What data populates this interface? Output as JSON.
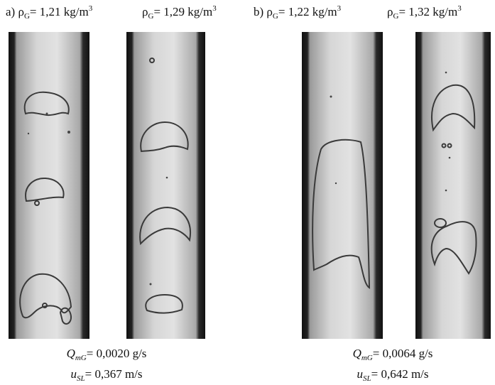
{
  "panels": [
    {
      "letter": "a)",
      "columns": [
        {
          "symbol": "ρ",
          "sub": "G",
          "value": "= 1,21 kg/m",
          "sup": "3"
        },
        {
          "symbol": "ρ",
          "sub": "G",
          "value": "= 1,29 kg/m",
          "sup": "3"
        }
      ],
      "flow": {
        "symbol": "Q",
        "sub": "mG",
        "value": "= 0,0020 g/s"
      },
      "velocity": {
        "symbol": "u",
        "sub": "SL",
        "value": "= 0,367 m/s"
      }
    },
    {
      "letter": "b)",
      "columns": [
        {
          "symbol": "ρ",
          "sub": "G",
          "value": "= 1,22 kg/m",
          "sup": "3"
        },
        {
          "symbol": "ρ",
          "sub": "G",
          "value": "= 1,32 kg/m",
          "sup": "3"
        }
      ],
      "flow": {
        "symbol": "Q",
        "sub": "mG",
        "value": "= 0,0064 g/s"
      },
      "velocity": {
        "symbol": "u",
        "sub": "SL",
        "value": "= 0,642 m/s"
      }
    }
  ]
}
